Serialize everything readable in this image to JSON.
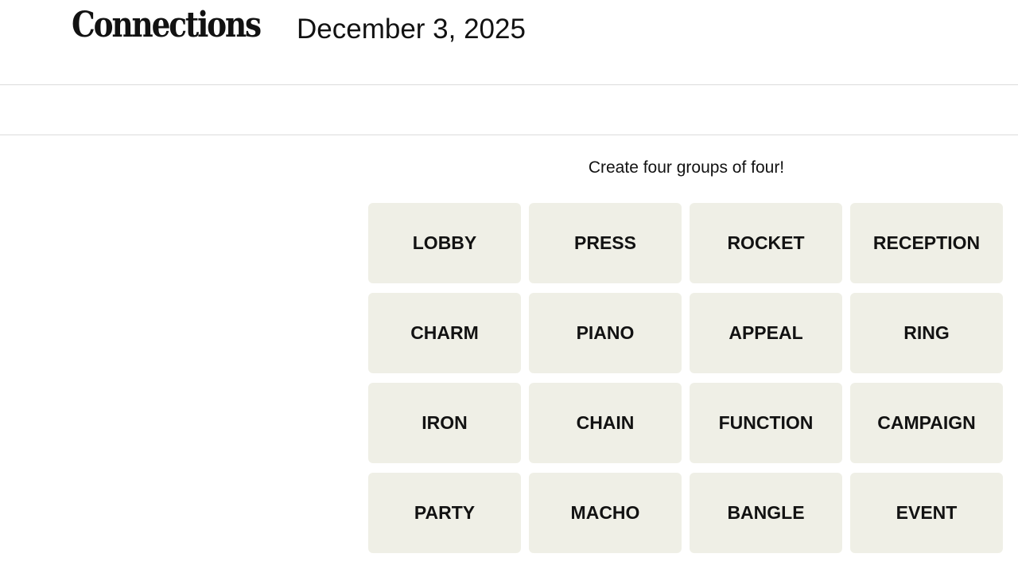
{
  "header": {
    "title": "Connections",
    "date": "December 3, 2025"
  },
  "game": {
    "prompt": "Create four groups of four!",
    "tiles": [
      "LOBBY",
      "PRESS",
      "ROCKET",
      "RECEPTION",
      "CHARM",
      "PIANO",
      "APPEAL",
      "RING",
      "IRON",
      "CHAIN",
      "FUNCTION",
      "CAMPAIGN",
      "PARTY",
      "MACHO",
      "BANGLE",
      "EVENT"
    ]
  },
  "colors": {
    "tile_bg": "#efefe6",
    "text": "#121212"
  }
}
